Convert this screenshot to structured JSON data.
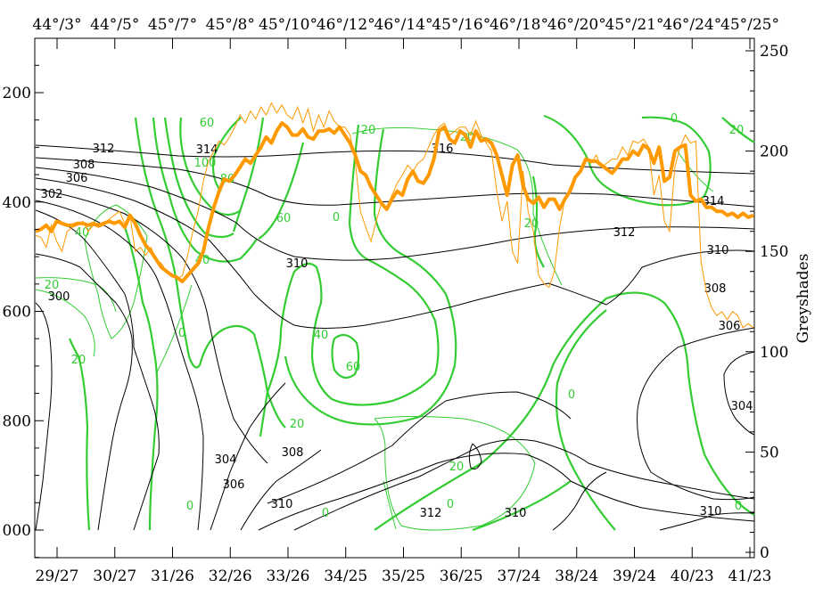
{
  "chart_data": {
    "type": "line",
    "title": "",
    "xlabel": "",
    "ylabel": "",
    "right_axis_label": "Greyshades",
    "bottom_ticks": [
      "29/27",
      "30/27",
      "31/26",
      "32/26",
      "33/26",
      "34/25",
      "35/25",
      "36/25",
      "37/24",
      "38/24",
      "39/24",
      "40/23",
      "41/23"
    ],
    "top_ticks": [
      "44°/3°",
      "44°/5°",
      "45°/7°",
      "45°/8°",
      "45°/10°",
      "46°/12°",
      "46°/14°",
      "45°/16°",
      "46°/18°",
      "46°/20°",
      "45°/21°",
      "46°/24°",
      "45°/25°"
    ],
    "left_axis": {
      "ticks": [
        200,
        400,
        600,
        800,
        1000
      ],
      "ylim": [
        1050,
        120
      ],
      "inverted": true
    },
    "right_axis": {
      "ticks": [
        0,
        50,
        100,
        150,
        200,
        250
      ],
      "ylim": [
        0,
        258
      ]
    },
    "colors": {
      "theta_e": "#000000",
      "wind": "#33cc33",
      "wind_thin": "#33cc33",
      "greyshade_thick": "#ff9900",
      "greyshade_thin": "#ff9900"
    },
    "series": [
      {
        "role": "greyshade_thick",
        "values": [
          160,
          161,
          163,
          160,
          165,
          164,
          163,
          163,
          164,
          164,
          163,
          164,
          163,
          164,
          165,
          164,
          165,
          162,
          168,
          164,
          158,
          153,
          150,
          146,
          142,
          140,
          138,
          137,
          135,
          138,
          141,
          144,
          150,
          162,
          172,
          180,
          186,
          185,
          188,
          192,
          196,
          194,
          198,
          202,
          207,
          204,
          210,
          214,
          212,
          208,
          208,
          211,
          207,
          206,
          210,
          210,
          211,
          209,
          212,
          208,
          204,
          198,
          190,
          188,
          182,
          178,
          174,
          171,
          176,
          180,
          178,
          186,
          190,
          185,
          184,
          188,
          196,
          210,
          212,
          206,
          204,
          210,
          208,
          202,
          210,
          205,
          206,
          204,
          198,
          188,
          178,
          193,
          198,
          183,
          176,
          174,
          177,
          172,
          176,
          176,
          171,
          176,
          180,
          187,
          190,
          196,
          195,
          195,
          193,
          191,
          189,
          192,
          196,
          196,
          200,
          198,
          203,
          201,
          194,
          202,
          185,
          187,
          200,
          202,
          203,
          178,
          175,
          176,
          172,
          172,
          170,
          170,
          168,
          169,
          167,
          169,
          167,
          168
        ]
      },
      {
        "role": "greyshade_thin",
        "values": [
          158,
          157,
          152,
          163,
          155,
          150,
          160,
          162,
          163,
          165,
          160,
          163,
          162,
          163,
          166,
          168,
          170,
          164,
          168,
          150,
          152,
          148,
          152,
          146,
          144,
          140,
          139,
          136,
          138,
          148,
          160,
          170,
          185,
          195,
          200,
          205,
          203,
          207,
          212,
          218,
          214,
          220,
          216,
          222,
          218,
          224,
          219,
          223,
          218,
          216,
          222,
          214,
          221,
          210,
          218,
          212,
          220,
          215,
          212,
          212,
          208,
          195,
          170,
          162,
          155,
          165,
          174,
          172,
          178,
          184,
          188,
          193,
          190,
          194,
          196,
          202,
          208,
          212,
          214,
          208,
          210,
          212,
          212,
          208,
          215,
          208,
          204,
          200,
          180,
          165,
          175,
          150,
          144,
          190,
          170,
          160,
          138,
          134,
          132,
          140,
          162,
          176,
          182,
          186,
          190,
          196,
          194,
          198,
          192,
          194,
          196,
          196,
          202,
          198,
          205,
          204,
          206,
          202,
          178,
          188,
          165,
          160,
          192,
          202,
          208,
          204,
          205,
          145,
          130,
          122,
          118,
          120,
          116,
          120,
          118,
          112,
          114,
          112
        ]
      }
    ],
    "contour_labels_theta_e": [
      "312",
      "314",
      "316",
      "308",
      "306",
      "302",
      "300",
      "310",
      "312",
      "314",
      "310",
      "308",
      "306",
      "304",
      "304",
      "306",
      "308",
      "310",
      "312",
      "310",
      "310"
    ],
    "contour_labels_wind": [
      "60",
      "100",
      "80",
      "60",
      "40",
      "40",
      "20",
      "20",
      "0",
      "20",
      "0",
      "40",
      "60",
      "20",
      "0",
      "0",
      "0",
      "20",
      "20",
      "0",
      "20",
      "0",
      "0",
      "20"
    ]
  }
}
